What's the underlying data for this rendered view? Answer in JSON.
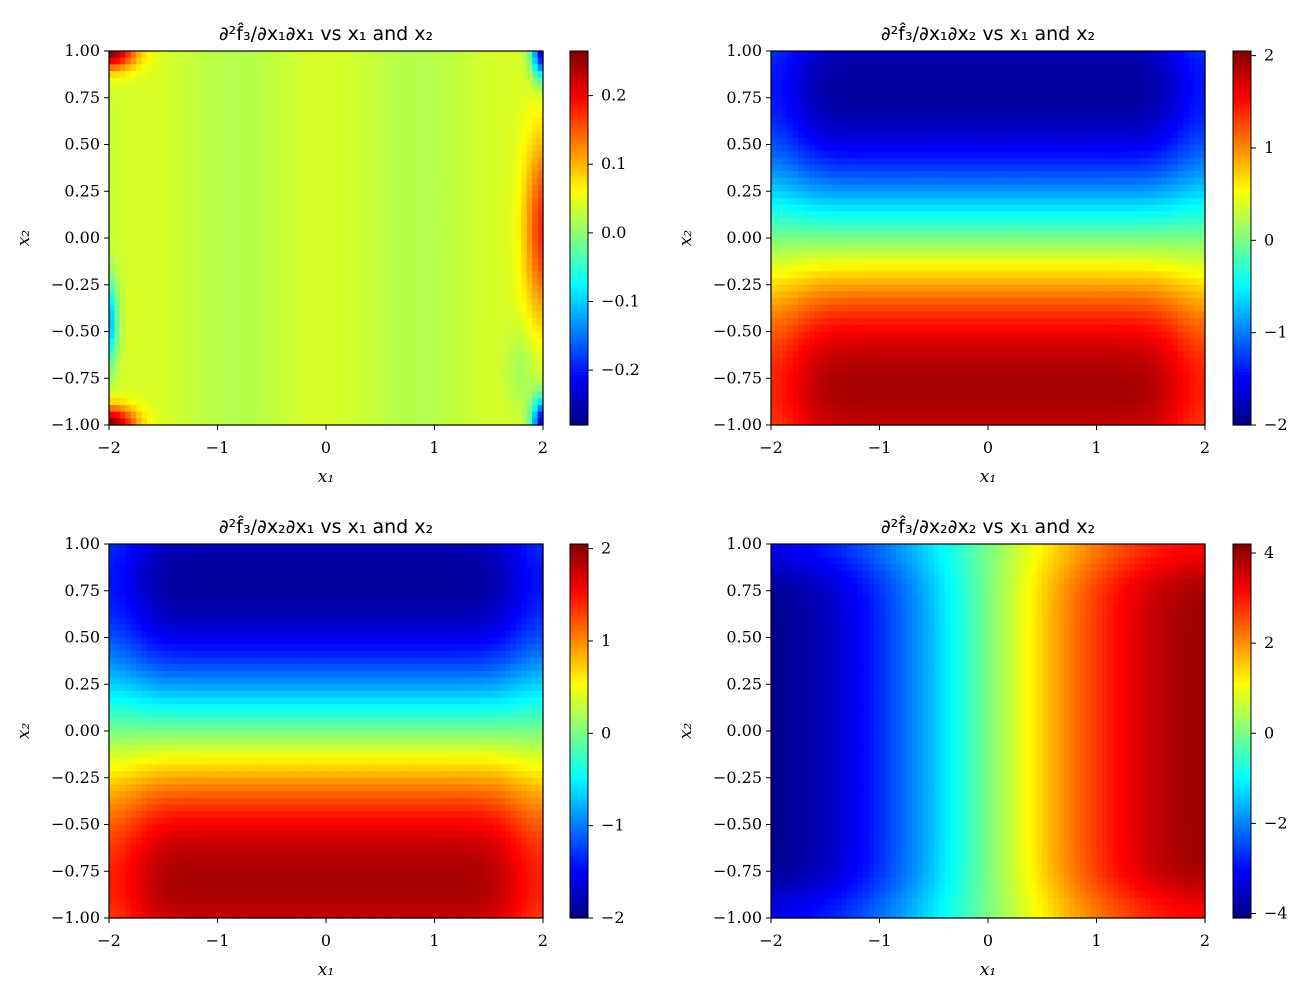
{
  "chart_data": [
    {
      "type": "heatmap",
      "title": "∂²f̂₃/∂x₁∂x₁ vs x₁ and x₂",
      "xlabel": "x₁",
      "ylabel": "x₂",
      "xlim": [
        -2,
        2
      ],
      "ylim": [
        -1,
        1
      ],
      "xticks": [
        "−2",
        "−1",
        "0",
        "1",
        "2"
      ],
      "yticks": [
        "1.00",
        "0.75",
        "0.50",
        "0.25",
        "0.00",
        "−0.25",
        "−0.50",
        "−0.75",
        "−1.00"
      ],
      "colormap": "jet",
      "vmin": -0.28,
      "vmax": 0.265,
      "colorbar_ticks": [
        0.2,
        0.1,
        0.0,
        -0.1,
        -0.2
      ],
      "colorbar_labels": [
        "0.2",
        "0.1",
        "0.0",
        "−0.1",
        "−0.2"
      ],
      "field": "d11"
    },
    {
      "type": "heatmap",
      "title": "∂²f̂₃/∂x₁∂x₂ vs x₁ and x₂",
      "xlabel": "x₁",
      "ylabel": "x₂",
      "xlim": [
        -2,
        2
      ],
      "ylim": [
        -1,
        1
      ],
      "xticks": [
        "−2",
        "−1",
        "0",
        "1",
        "2"
      ],
      "yticks": [
        "1.00",
        "0.75",
        "0.50",
        "0.25",
        "0.00",
        "−0.25",
        "−0.50",
        "−0.75",
        "−1.00"
      ],
      "colormap": "jet",
      "vmin": -2.0,
      "vmax": 2.05,
      "colorbar_ticks": [
        2,
        1,
        0,
        -1,
        -2
      ],
      "colorbar_labels": [
        "2",
        "1",
        "0",
        "−1",
        "−2"
      ],
      "field": "d12"
    },
    {
      "type": "heatmap",
      "title": "∂²f̂₃/∂x₂∂x₁ vs x₁ and x₂",
      "xlabel": "x₁",
      "ylabel": "x₂",
      "xlim": [
        -2,
        2
      ],
      "ylim": [
        -1,
        1
      ],
      "xticks": [
        "−2",
        "−1",
        "0",
        "1",
        "2"
      ],
      "yticks": [
        "1.00",
        "0.75",
        "0.50",
        "0.25",
        "0.00",
        "−0.25",
        "−0.50",
        "−0.75",
        "−1.00"
      ],
      "colormap": "jet",
      "vmin": -2.0,
      "vmax": 2.05,
      "colorbar_ticks": [
        2,
        1,
        0,
        -1,
        -2
      ],
      "colorbar_labels": [
        "2",
        "1",
        "0",
        "−1",
        "−2"
      ],
      "field": "d12"
    },
    {
      "type": "heatmap",
      "title": "∂²f̂₃/∂x₂∂x₂ vs x₁ and x₂",
      "xlabel": "x₁",
      "ylabel": "x₂",
      "xlim": [
        -2,
        2
      ],
      "ylim": [
        -1,
        1
      ],
      "xticks": [
        "−2",
        "−1",
        "0",
        "1",
        "2"
      ],
      "yticks": [
        "1.00",
        "0.75",
        "0.50",
        "0.25",
        "0.00",
        "−0.25",
        "−0.50",
        "−0.75",
        "−1.00"
      ],
      "colormap": "jet",
      "vmin": -4.1,
      "vmax": 4.2,
      "colorbar_ticks": [
        4,
        2,
        0,
        -2,
        -4
      ],
      "colorbar_labels": [
        "4",
        "2",
        "0",
        "−2",
        "−4"
      ],
      "field": "d22"
    }
  ]
}
